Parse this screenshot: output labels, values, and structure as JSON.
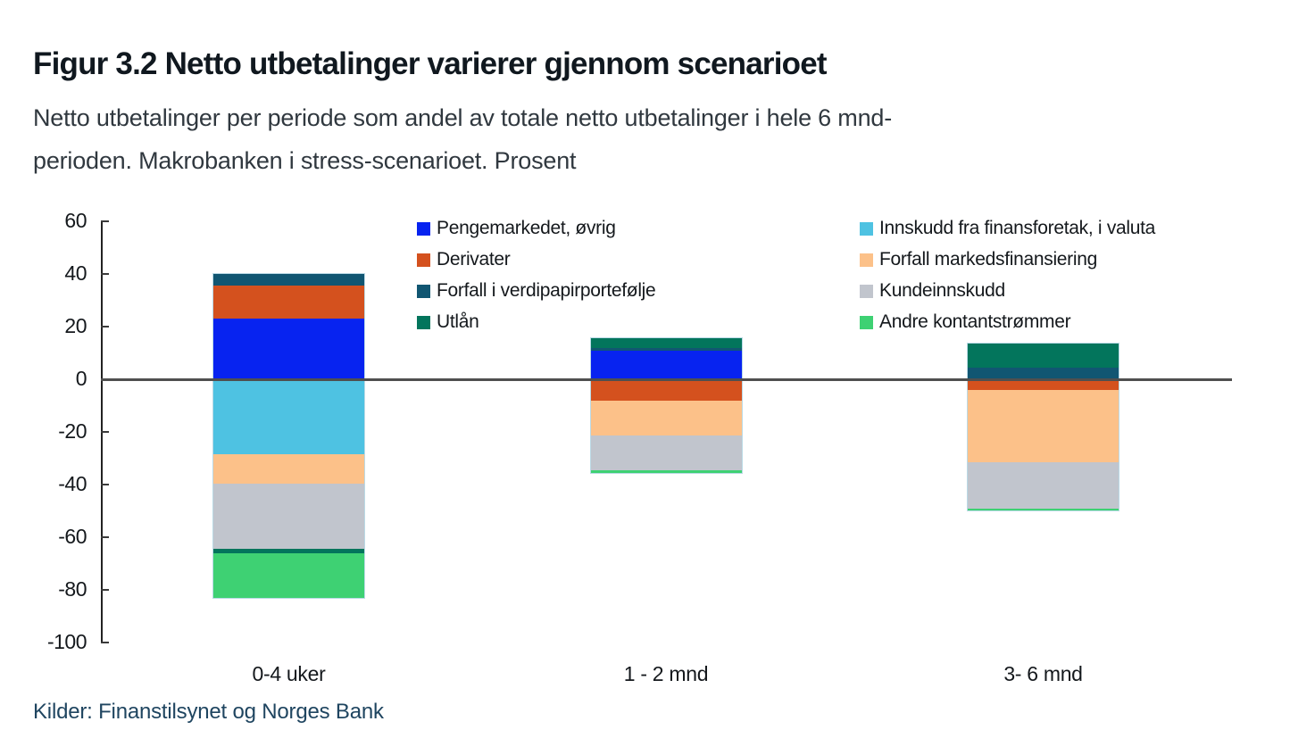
{
  "page": {
    "title": "Figur 3.2 Netto utbetalinger varierer gjennom scenarioet",
    "subtitle_line1": "Netto utbetalinger per periode som andel av totale netto utbetalinger i hele 6 mnd-",
    "subtitle_line2": "perioden. Makrobanken i stress-scenarioet. Prosent",
    "source": "Kilder: Finanstilsynet og Norges Bank"
  },
  "colors": {
    "title_text": "#10181f",
    "subtitle_text": "#30383f",
    "source_text": "#1f4560",
    "axis": "#222222",
    "zero_line": "#4f4f4f"
  },
  "chart_data": {
    "type": "bar",
    "stacked": true,
    "title": "Figur 3.2 Netto utbetalinger varierer gjennom scenarioet",
    "xlabel": "",
    "ylabel": "Prosent",
    "categories": [
      "0-4 uker",
      "1 - 2 mnd",
      "3- 6 mnd"
    ],
    "series": [
      {
        "name": "Pengemarkedet, øvrig",
        "color": "#0723F0",
        "values": [
          23,
          11,
          0
        ]
      },
      {
        "name": "Derivater",
        "color": "#D4511E",
        "values": [
          12.5,
          -8,
          -4
        ]
      },
      {
        "name": "Forfall i verdipapirportefølje",
        "color": "#115672",
        "values": [
          4.5,
          1,
          4.5
        ]
      },
      {
        "name": "Innskudd fra finansforetak, i valuta",
        "color": "#4EC2E2",
        "values": [
          -28.5,
          0,
          0
        ]
      },
      {
        "name": "Forfall markedsfinansiering",
        "color": "#FCC189",
        "values": [
          -11,
          -13.5,
          -27.5
        ]
      },
      {
        "name": "Kundeinnskudd",
        "color": "#C1C5CD",
        "values": [
          -25,
          -13,
          -17.5
        ]
      },
      {
        "name": "Utlån",
        "color": "#03755C",
        "values": [
          -1.5,
          3.5,
          9
        ]
      },
      {
        "name": "Andre kontantstrømmer",
        "color": "#3ED173",
        "values": [
          -17,
          -1,
          -0.7
        ]
      }
    ],
    "ylim": [
      -100,
      60
    ],
    "yticks": [
      60,
      40,
      20,
      0,
      -20,
      -40,
      -60,
      -80,
      -100
    ],
    "grid": false,
    "legend_position": "top-inside-two-columns",
    "legend": {
      "left_column": [
        "Pengemarkedet, øvrig",
        "Derivater",
        "Forfall i verdipapirportefølje",
        "Utlån"
      ],
      "right_column": [
        "Innskudd fra finansforetak, i valuta",
        "Forfall markedsfinansiering",
        "Kundeinnskudd",
        "Andre kontantstrømmer"
      ]
    }
  }
}
